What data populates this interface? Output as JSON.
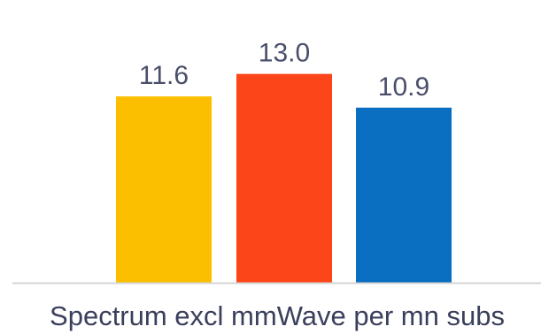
{
  "chart_data": {
    "type": "bar",
    "xlabel": "Spectrum excl mmWave per mn subs",
    "ylabel": "",
    "title": "",
    "ylim": [
      0,
      15.4
    ],
    "grid": false,
    "legend": "none",
    "series": [
      {
        "values": [
          11.6,
          13.0,
          10.9
        ]
      }
    ],
    "value_labels": [
      "11.6",
      "13.0",
      "10.9"
    ],
    "colors": [
      "#fcbf00",
      "#fc4519",
      "#0a6ec1"
    ],
    "baseline_color": "#d4d4d4"
  }
}
